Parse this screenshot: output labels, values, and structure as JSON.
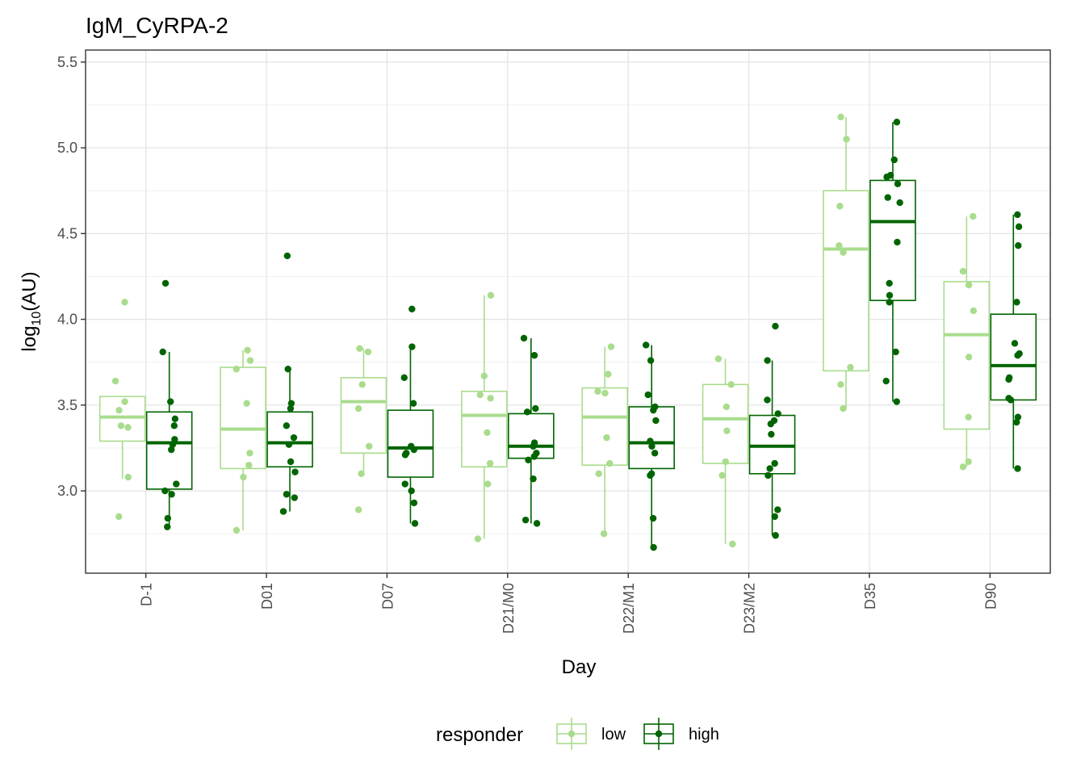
{
  "chart_data": {
    "type": "box",
    "title": "IgM_CyRPA-2",
    "xlabel": "Day",
    "ylabel_base": "log",
    "ylabel_sub": "10",
    "ylabel_rest": "(AU)",
    "ylim": [
      2.52,
      5.57
    ],
    "yticks": [
      3.0,
      3.5,
      4.0,
      4.5,
      5.0,
      5.5
    ],
    "ytick_labels": [
      "3.0",
      "3.5",
      "4.0",
      "4.5",
      "5.0",
      "5.5"
    ],
    "categories": [
      "D-1",
      "D01",
      "D07",
      "D21/M0",
      "D22/M1",
      "D23/M2",
      "D35",
      "D90"
    ],
    "grid": true,
    "legend": {
      "title": "responder",
      "position": "bottom",
      "entries": [
        {
          "label": "low",
          "color": "#a9dc8d"
        },
        {
          "label": "high",
          "color": "#006400"
        }
      ]
    },
    "series": [
      {
        "name": "low",
        "color": "#a9dc8d",
        "boxes": [
          {
            "min": 3.07,
            "q1": 3.29,
            "median": 3.43,
            "q3": 3.55,
            "max": 3.55
          },
          {
            "min": 2.77,
            "q1": 3.13,
            "median": 3.36,
            "q3": 3.72,
            "max": 3.82
          },
          {
            "min": 3.1,
            "q1": 3.22,
            "median": 3.52,
            "q3": 3.66,
            "max": 3.83
          },
          {
            "min": 2.72,
            "q1": 3.14,
            "median": 3.44,
            "q3": 3.58,
            "max": 4.14
          },
          {
            "min": 2.75,
            "q1": 3.15,
            "median": 3.43,
            "q3": 3.6,
            "max": 3.84
          },
          {
            "min": 2.69,
            "q1": 3.16,
            "median": 3.42,
            "q3": 3.62,
            "max": 3.77
          },
          {
            "min": 3.48,
            "q1": 3.7,
            "median": 4.41,
            "q3": 4.75,
            "max": 5.18
          },
          {
            "min": 3.14,
            "q1": 3.36,
            "median": 3.91,
            "q3": 4.22,
            "max": 4.6
          }
        ],
        "points": [
          [
            4.1,
            3.64,
            3.52,
            3.47,
            3.38,
            3.37,
            3.08,
            2.85
          ],
          [
            3.82,
            3.76,
            3.71,
            3.51,
            3.22,
            3.15,
            3.08,
            2.77
          ],
          [
            3.83,
            3.81,
            3.62,
            3.48,
            3.26,
            3.1,
            2.89
          ],
          [
            4.14,
            3.67,
            3.56,
            3.54,
            3.34,
            3.16,
            3.04,
            2.72
          ],
          [
            3.84,
            3.68,
            3.58,
            3.57,
            3.31,
            3.16,
            3.1,
            2.75
          ],
          [
            3.77,
            3.62,
            3.49,
            3.35,
            3.17,
            3.09,
            2.69
          ],
          [
            5.18,
            5.05,
            4.66,
            4.43,
            4.39,
            3.72,
            3.62,
            3.48
          ],
          [
            4.6,
            4.28,
            4.2,
            4.05,
            3.78,
            3.43,
            3.17,
            3.14
          ]
        ]
      },
      {
        "name": "high",
        "color": "#006400",
        "boxes": [
          {
            "min": 2.79,
            "q1": 3.01,
            "median": 3.28,
            "q3": 3.46,
            "max": 3.81
          },
          {
            "min": 2.88,
            "q1": 3.14,
            "median": 3.28,
            "q3": 3.46,
            "max": 3.71
          },
          {
            "min": 2.81,
            "q1": 3.08,
            "median": 3.25,
            "q3": 3.47,
            "max": 3.84
          },
          {
            "min": 2.81,
            "q1": 3.19,
            "median": 3.26,
            "q3": 3.45,
            "max": 3.89
          },
          {
            "min": 2.67,
            "q1": 3.13,
            "median": 3.28,
            "q3": 3.49,
            "max": 3.85
          },
          {
            "min": 2.74,
            "q1": 3.1,
            "median": 3.26,
            "q3": 3.44,
            "max": 3.76
          },
          {
            "min": 3.52,
            "q1": 4.11,
            "median": 4.57,
            "q3": 4.81,
            "max": 5.15
          },
          {
            "min": 3.13,
            "q1": 3.53,
            "median": 3.73,
            "q3": 4.03,
            "max": 4.61
          }
        ],
        "points": [
          [
            4.21,
            3.81,
            3.52,
            3.42,
            3.38,
            3.3,
            3.27,
            3.24,
            3.04,
            3.0,
            2.98,
            2.84,
            2.79
          ],
          [
            4.37,
            3.71,
            3.51,
            3.48,
            3.38,
            3.31,
            3.27,
            3.17,
            3.11,
            2.98,
            2.96,
            2.88
          ],
          [
            4.06,
            3.84,
            3.66,
            3.51,
            3.26,
            3.24,
            3.22,
            3.21,
            3.04,
            3.0,
            2.93,
            2.81
          ],
          [
            3.89,
            3.79,
            3.48,
            3.46,
            3.28,
            3.26,
            3.22,
            3.2,
            3.18,
            3.07,
            2.83,
            2.81
          ],
          [
            3.85,
            3.76,
            3.56,
            3.49,
            3.47,
            3.41,
            3.29,
            3.26,
            3.22,
            3.1,
            3.09,
            2.84,
            2.67
          ],
          [
            3.96,
            3.76,
            3.53,
            3.45,
            3.41,
            3.39,
            3.33,
            3.16,
            3.13,
            3.09,
            2.89,
            2.85,
            2.74
          ],
          [
            5.15,
            4.93,
            4.84,
            4.83,
            4.79,
            4.71,
            4.68,
            4.45,
            4.21,
            4.14,
            4.1,
            3.81,
            3.64,
            3.52
          ],
          [
            4.61,
            4.54,
            4.43,
            4.1,
            3.86,
            3.8,
            3.79,
            3.66,
            3.65,
            3.54,
            3.53,
            3.43,
            3.4,
            3.13
          ]
        ]
      }
    ]
  }
}
